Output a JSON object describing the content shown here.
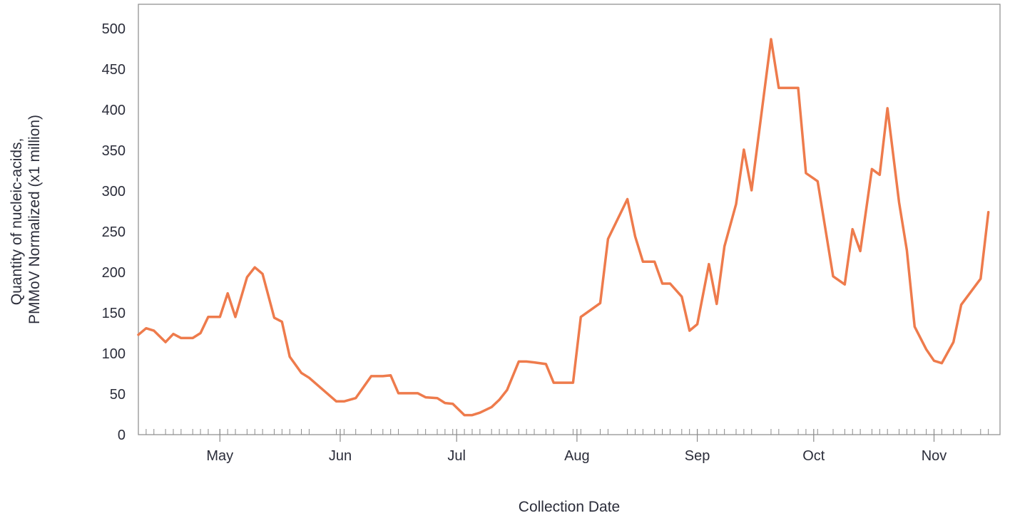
{
  "chart_data": {
    "type": "line",
    "title": "",
    "xlabel": "Collection Date",
    "ylabel": [
      "Quantity of nucleic-acids,",
      "PMMoV Normalized (x1 million)"
    ],
    "ylim": [
      0,
      530
    ],
    "y_ticks": [
      0,
      50,
      100,
      150,
      200,
      250,
      300,
      350,
      400,
      450,
      500
    ],
    "xlim": [
      "2023-04-10",
      "2023-11-18"
    ],
    "x_ticks": [
      {
        "date": "2023-05-01",
        "label": "May"
      },
      {
        "date": "2023-06-01",
        "label": "Jun"
      },
      {
        "date": "2023-07-01",
        "label": "Jul"
      },
      {
        "date": "2023-08-01",
        "label": "Aug"
      },
      {
        "date": "2023-09-01",
        "label": "Sep"
      },
      {
        "date": "2023-10-01",
        "label": "Oct"
      },
      {
        "date": "2023-11-01",
        "label": "Nov"
      }
    ],
    "grid": false,
    "legend": "none",
    "series": [
      {
        "color": "#ee7b4c",
        "points": [
          [
            "2023-04-10",
            123
          ],
          [
            "2023-04-12",
            131
          ],
          [
            "2023-04-14",
            128
          ],
          [
            "2023-04-17",
            114
          ],
          [
            "2023-04-19",
            124
          ],
          [
            "2023-04-21",
            119
          ],
          [
            "2023-04-24",
            119
          ],
          [
            "2023-04-26",
            125
          ],
          [
            "2023-04-28",
            145
          ],
          [
            "2023-05-01",
            145
          ],
          [
            "2023-05-03",
            174
          ],
          [
            "2023-05-05",
            145
          ],
          [
            "2023-05-08",
            194
          ],
          [
            "2023-05-10",
            206
          ],
          [
            "2023-05-12",
            198
          ],
          [
            "2023-05-15",
            144
          ],
          [
            "2023-05-17",
            139
          ],
          [
            "2023-05-19",
            96
          ],
          [
            "2023-05-22",
            76
          ],
          [
            "2023-05-24",
            70
          ],
          [
            "2023-05-31",
            41
          ],
          [
            "2023-06-02",
            41
          ],
          [
            "2023-06-05",
            45
          ],
          [
            "2023-06-09",
            72
          ],
          [
            "2023-06-12",
            72
          ],
          [
            "2023-06-14",
            73
          ],
          [
            "2023-06-16",
            51
          ],
          [
            "2023-06-21",
            51
          ],
          [
            "2023-06-23",
            46
          ],
          [
            "2023-06-26",
            45
          ],
          [
            "2023-06-28",
            39
          ],
          [
            "2023-06-30",
            38
          ],
          [
            "2023-07-03",
            24
          ],
          [
            "2023-07-05",
            24
          ],
          [
            "2023-07-07",
            27
          ],
          [
            "2023-07-10",
            34
          ],
          [
            "2023-07-12",
            43
          ],
          [
            "2023-07-14",
            55
          ],
          [
            "2023-07-17",
            90
          ],
          [
            "2023-07-19",
            90
          ],
          [
            "2023-07-21",
            89
          ],
          [
            "2023-07-24",
            87
          ],
          [
            "2023-07-26",
            64
          ],
          [
            "2023-07-31",
            64
          ],
          [
            "2023-08-02",
            145
          ],
          [
            "2023-08-07",
            162
          ],
          [
            "2023-08-09",
            241
          ],
          [
            "2023-08-14",
            290
          ],
          [
            "2023-08-16",
            244
          ],
          [
            "2023-08-18",
            213
          ],
          [
            "2023-08-21",
            213
          ],
          [
            "2023-08-23",
            186
          ],
          [
            "2023-08-25",
            186
          ],
          [
            "2023-08-28",
            170
          ],
          [
            "2023-08-30",
            128
          ],
          [
            "2023-09-01",
            136
          ],
          [
            "2023-09-04",
            210
          ],
          [
            "2023-09-06",
            161
          ],
          [
            "2023-09-08",
            232
          ],
          [
            "2023-09-11",
            284
          ],
          [
            "2023-09-13",
            351
          ],
          [
            "2023-09-15",
            301
          ],
          [
            "2023-09-20",
            487
          ],
          [
            "2023-09-22",
            427
          ],
          [
            "2023-09-27",
            427
          ],
          [
            "2023-09-29",
            322
          ],
          [
            "2023-10-02",
            312
          ],
          [
            "2023-10-06",
            195
          ],
          [
            "2023-10-09",
            185
          ],
          [
            "2023-10-11",
            253
          ],
          [
            "2023-10-13",
            226
          ],
          [
            "2023-10-16",
            327
          ],
          [
            "2023-10-18",
            320
          ],
          [
            "2023-10-20",
            402
          ],
          [
            "2023-10-23",
            286
          ],
          [
            "2023-10-25",
            227
          ],
          [
            "2023-10-27",
            133
          ],
          [
            "2023-10-30",
            105
          ],
          [
            "2023-11-01",
            91
          ],
          [
            "2023-11-03",
            88
          ],
          [
            "2023-11-06",
            114
          ],
          [
            "2023-11-08",
            160
          ],
          [
            "2023-11-13",
            192
          ],
          [
            "2023-11-15",
            274
          ]
        ]
      }
    ]
  }
}
